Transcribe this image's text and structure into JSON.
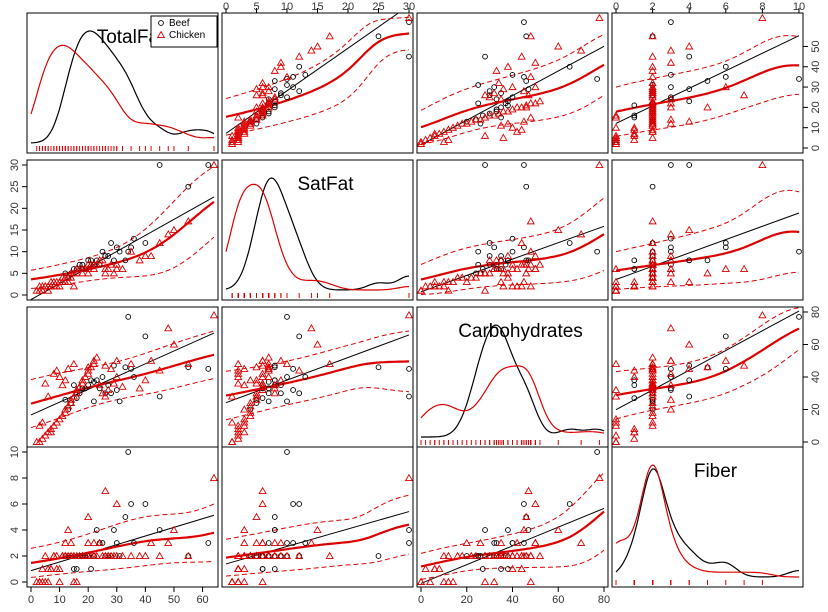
{
  "chart_data": {
    "type": "scatter",
    "subtype": "scatterplot-matrix",
    "variables": [
      {
        "name": "TotalFat",
        "lim": [
          0,
          64
        ],
        "ticks": [
          0,
          10,
          20,
          30,
          40,
          50,
          60
        ]
      },
      {
        "name": "SatFat",
        "lim": [
          0,
          30
        ],
        "ticks": [
          0,
          5,
          10,
          15,
          20,
          25,
          30
        ]
      },
      {
        "name": "Carbohydrates",
        "lim": [
          0,
          80
        ],
        "ticks": [
          0,
          20,
          40,
          60,
          80
        ]
      },
      {
        "name": "Fiber",
        "lim": [
          0,
          10
        ],
        "ticks": [
          0,
          2,
          4,
          6,
          8,
          10
        ]
      }
    ],
    "top_axis_ticks": {
      "1": [
        0,
        5,
        10,
        15,
        20,
        25,
        30
      ],
      "3": [
        0,
        2,
        4,
        6,
        8,
        10
      ]
    },
    "bottom_axis_ticks": {
      "0": [
        0,
        10,
        20,
        30,
        40,
        50,
        60
      ],
      "2": [
        0,
        20,
        40,
        60,
        80
      ]
    },
    "left_axis_ticks": {
      "1": [
        0,
        5,
        10,
        15,
        20,
        25,
        30
      ],
      "3": [
        0,
        2,
        4,
        6,
        8,
        10
      ]
    },
    "right_axis_ticks": {
      "0": [
        0,
        10,
        20,
        30,
        40,
        50
      ],
      "2": [
        0,
        20,
        40,
        60,
        80
      ]
    },
    "legend": {
      "position": "top-right of first panel",
      "entries": [
        {
          "label": "Beef",
          "symbol": "circle",
          "color": "#000000"
        },
        {
          "label": "Chicken",
          "symbol": "triangle",
          "color": "#dd0000"
        }
      ]
    },
    "groups": [
      {
        "name": "Beef",
        "color": "#000000",
        "points": [
          [
            16,
            6,
            27,
            1
          ],
          [
            18,
            7,
            33,
            2
          ],
          [
            20,
            8,
            35,
            2
          ],
          [
            22,
            7,
            37,
            2
          ],
          [
            25,
            10,
            40,
            3
          ],
          [
            28,
            12,
            30,
            2
          ],
          [
            30,
            11,
            32,
            3
          ],
          [
            14,
            5,
            24,
            2
          ],
          [
            12,
            5,
            26,
            2
          ],
          [
            33,
            8,
            46,
            5
          ],
          [
            35,
            11,
            45,
            6
          ],
          [
            15,
            6,
            35,
            1
          ],
          [
            45,
            30,
            28,
            4
          ],
          [
            55,
            25,
            46,
            2
          ],
          [
            62,
            30,
            45,
            3
          ],
          [
            23,
            8,
            38,
            4
          ],
          [
            17,
            7,
            30,
            2
          ],
          [
            19,
            6,
            33,
            2
          ],
          [
            21,
            8,
            38,
            1
          ],
          [
            26,
            9,
            30,
            2
          ],
          [
            31,
            10,
            25,
            2
          ],
          [
            36,
            13,
            40,
            3
          ],
          [
            27,
            9,
            35,
            2
          ],
          [
            24,
            7,
            33,
            3
          ],
          [
            13,
            4,
            20,
            2
          ],
          [
            40,
            12,
            65,
            6
          ],
          [
            34,
            10,
            77,
            10
          ],
          [
            29,
            8,
            47,
            4
          ],
          [
            18,
            6,
            33,
            2
          ],
          [
            22,
            7,
            25,
            2
          ]
        ]
      },
      {
        "name": "Chicken",
        "color": "#dd0000",
        "points": [
          [
            2,
            1,
            0,
            0
          ],
          [
            3,
            1,
            0,
            0
          ],
          [
            4,
            2,
            2,
            1
          ],
          [
            5,
            2,
            4,
            0
          ],
          [
            6,
            2,
            6,
            1
          ],
          [
            7,
            2,
            8,
            1
          ],
          [
            8,
            3,
            10,
            2
          ],
          [
            9,
            3,
            12,
            2
          ],
          [
            10,
            3,
            14,
            0
          ],
          [
            11,
            4,
            16,
            2
          ],
          [
            12,
            4,
            18,
            2
          ],
          [
            12,
            3,
            20,
            3
          ],
          [
            13,
            4,
            22,
            2
          ],
          [
            14,
            4,
            24,
            2
          ],
          [
            14,
            5,
            26,
            3
          ],
          [
            15,
            5,
            28,
            2
          ],
          [
            16,
            5,
            30,
            2
          ],
          [
            16,
            6,
            32,
            0
          ],
          [
            17,
            6,
            34,
            2
          ],
          [
            18,
            6,
            36,
            2
          ],
          [
            18,
            5,
            38,
            2
          ],
          [
            19,
            6,
            40,
            2
          ],
          [
            20,
            6,
            42,
            3
          ],
          [
            20,
            7,
            44,
            2
          ],
          [
            21,
            7,
            46,
            2
          ],
          [
            22,
            7,
            48,
            2
          ],
          [
            22,
            6,
            50,
            3
          ],
          [
            23,
            7,
            52,
            2
          ],
          [
            24,
            8,
            35,
            3
          ],
          [
            25,
            8,
            30,
            2
          ],
          [
            26,
            5,
            28,
            2
          ],
          [
            27,
            6,
            32,
            2
          ],
          [
            28,
            7,
            45,
            2
          ],
          [
            29,
            5,
            36,
            2
          ],
          [
            30,
            7,
            40,
            2
          ],
          [
            32,
            6,
            34,
            2
          ],
          [
            35,
            10,
            48,
            2
          ],
          [
            38,
            8,
            33,
            2
          ],
          [
            40,
            9,
            38,
            2
          ],
          [
            42,
            9,
            50,
            3
          ],
          [
            45,
            12,
            44,
            2
          ],
          [
            48,
            14,
            70,
            3
          ],
          [
            50,
            15,
            60,
            4
          ],
          [
            55,
            17,
            48,
            2
          ],
          [
            64,
            30,
            78,
            8
          ],
          [
            10,
            2,
            40,
            1
          ],
          [
            8,
            2,
            42,
            2
          ],
          [
            13,
            3,
            45,
            4
          ],
          [
            15,
            2,
            48,
            0
          ],
          [
            11,
            3,
            35,
            2
          ],
          [
            9,
            2,
            44,
            1
          ],
          [
            12,
            4,
            38,
            2
          ],
          [
            20,
            5,
            46,
            5
          ],
          [
            26,
            6,
            47,
            7
          ],
          [
            30,
            6,
            50,
            6
          ],
          [
            6,
            1,
            28,
            0
          ],
          [
            4,
            1,
            12,
            0
          ],
          [
            7,
            3,
            6,
            1
          ],
          [
            5,
            2,
            36,
            2
          ],
          [
            3,
            2,
            10,
            0
          ]
        ]
      }
    ]
  }
}
